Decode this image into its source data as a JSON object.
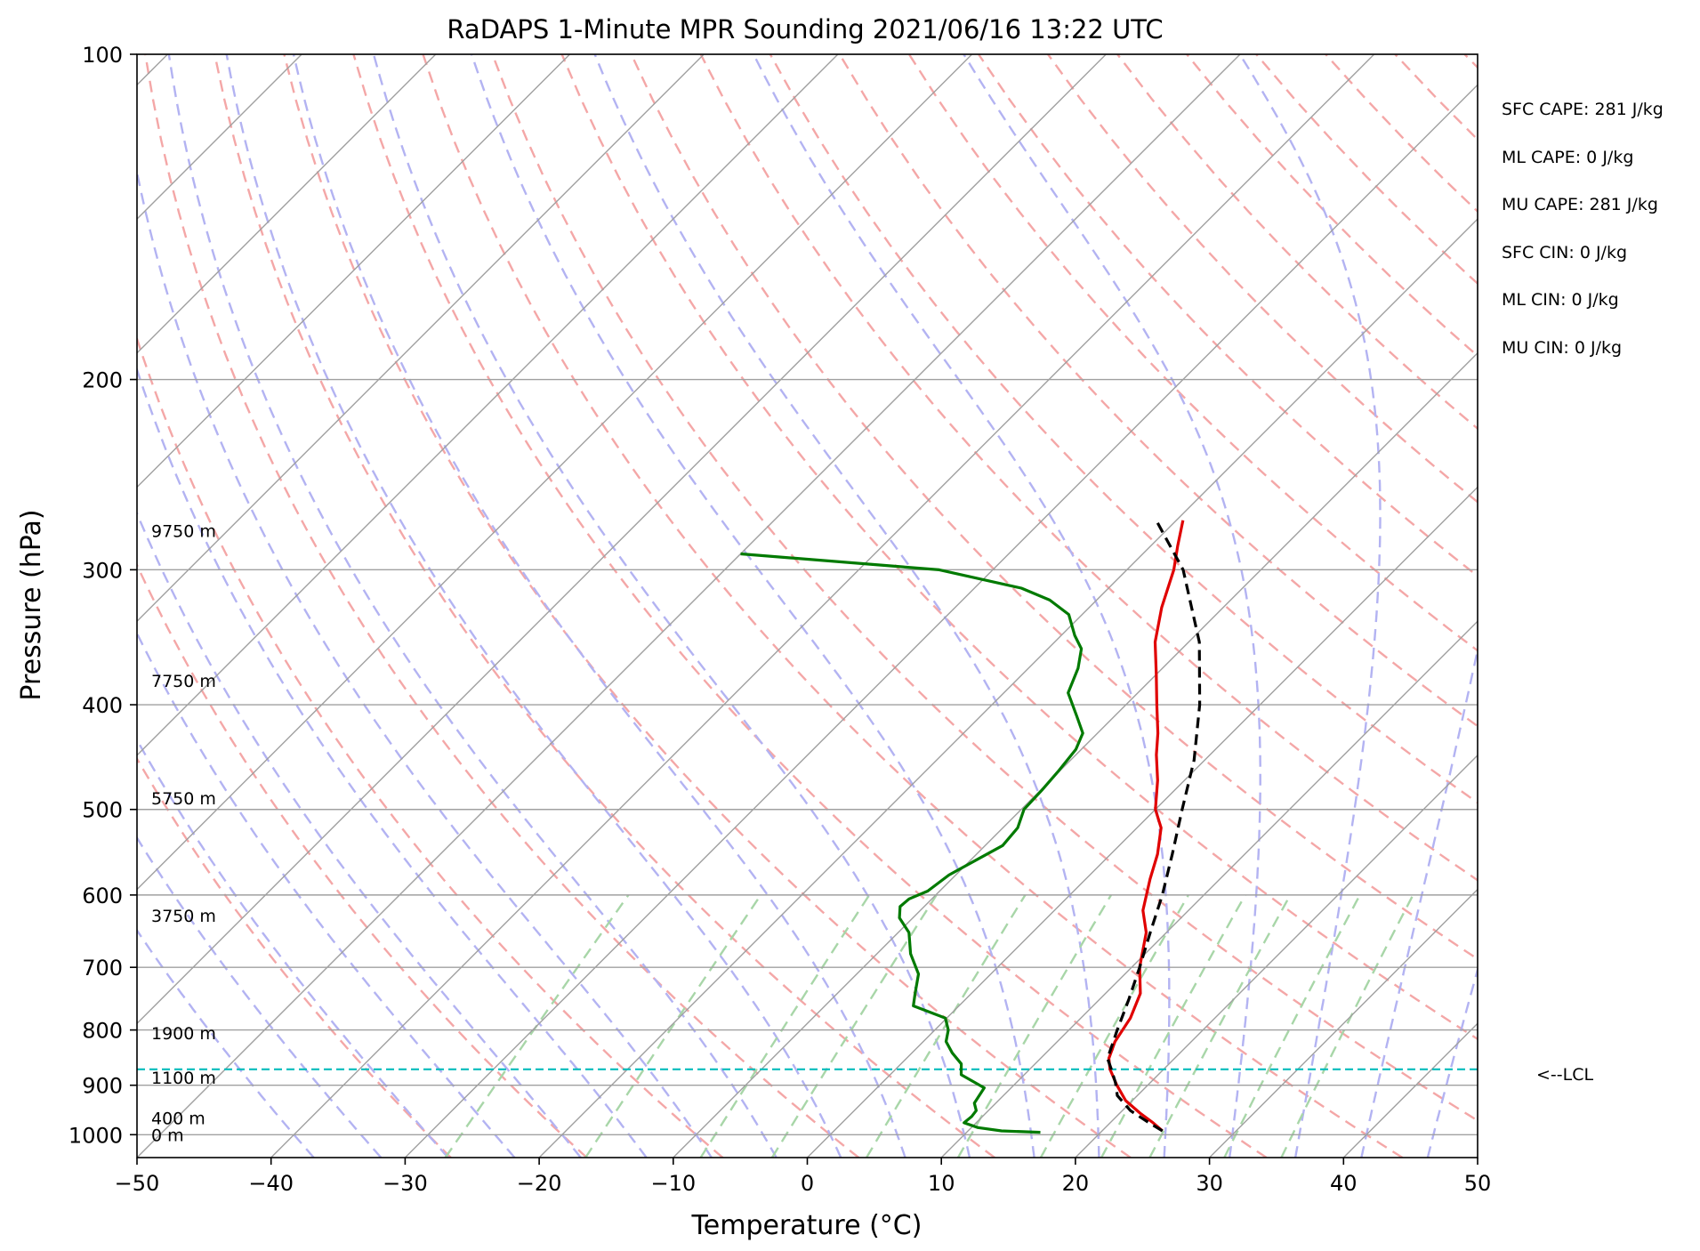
{
  "chart_data": {
    "type": "line",
    "title": "RaDAPS 1-Minute MPR Sounding 2021/06/16 13:22 UTC",
    "xlabel": "Temperature (°C)",
    "ylabel": "Pressure (hPa)",
    "xlim": [
      -50,
      50
    ],
    "ylim": [
      1050,
      100
    ],
    "yscale": "log",
    "skew": "skew-T log-p",
    "grid": true,
    "x_ticks": [
      -50,
      -40,
      -30,
      -20,
      -10,
      0,
      10,
      20,
      30,
      40,
      50
    ],
    "x_tick_labels": [
      "−50",
      "−40",
      "−30",
      "−20",
      "−10",
      "0",
      "10",
      "20",
      "30",
      "40",
      "50"
    ],
    "y_ticks": [
      1000,
      900,
      800,
      700,
      600,
      500,
      400,
      300,
      200,
      100
    ],
    "y_tick_labels": [
      "1000",
      "900",
      "800",
      "700",
      "600",
      "500",
      "400",
      "300",
      "200",
      "100"
    ],
    "colors": {
      "temperature": "#e00000",
      "dewpoint": "#007a00",
      "parcel": "#000000",
      "lcl": "#00bcbc",
      "dry_adiabats": "#f4a7a7",
      "moist_adiabats": "#b3b3f2",
      "mixing_ratio": "#a8d6a8",
      "isotherms": "#a0a0a0",
      "isobars": "#a0a0a0"
    },
    "series": [
      {
        "key": "temperature",
        "points": [
          {
            "p": 992,
            "t": 24.5
          },
          {
            "p": 975,
            "t": 23.2
          },
          {
            "p": 955,
            "t": 21.5
          },
          {
            "p": 930,
            "t": 19.5
          },
          {
            "p": 900,
            "t": 17.7
          },
          {
            "p": 870,
            "t": 16.0
          },
          {
            "p": 850,
            "t": 15.1
          },
          {
            "p": 820,
            "t": 14.3
          },
          {
            "p": 780,
            "t": 13.7
          },
          {
            "p": 740,
            "t": 12.6
          },
          {
            "p": 700,
            "t": 10.6
          },
          {
            "p": 650,
            "t": 8.5
          },
          {
            "p": 620,
            "t": 6.6
          },
          {
            "p": 580,
            "t": 4.8
          },
          {
            "p": 550,
            "t": 3.5
          },
          {
            "p": 520,
            "t": 1.8
          },
          {
            "p": 500,
            "t": 0.0
          },
          {
            "p": 470,
            "t": -2.0
          },
          {
            "p": 445,
            "t": -4.0
          },
          {
            "p": 425,
            "t": -5.5
          },
          {
            "p": 400,
            "t": -7.7
          },
          {
            "p": 375,
            "t": -10.0
          },
          {
            "p": 350,
            "t": -12.5
          },
          {
            "p": 325,
            "t": -14.6
          },
          {
            "p": 300,
            "t": -16.5
          },
          {
            "p": 285,
            "t": -18.0
          },
          {
            "p": 270,
            "t": -19.5
          }
        ]
      },
      {
        "key": "dewpoint",
        "points": [
          {
            "p": 995,
            "t": 15.5
          },
          {
            "p": 992,
            "t": 12.5
          },
          {
            "p": 985,
            "t": 10.5
          },
          {
            "p": 975,
            "t": 9.1
          },
          {
            "p": 962,
            "t": 9.2
          },
          {
            "p": 950,
            "t": 9.1
          },
          {
            "p": 935,
            "t": 8.4
          },
          {
            "p": 905,
            "t": 8.0
          },
          {
            "p": 880,
            "t": 5.3
          },
          {
            "p": 860,
            "t": 4.5
          },
          {
            "p": 840,
            "t": 3.0
          },
          {
            "p": 820,
            "t": 1.7
          },
          {
            "p": 800,
            "t": 1.0
          },
          {
            "p": 780,
            "t": -0.1
          },
          {
            "p": 760,
            "t": -3.4
          },
          {
            "p": 740,
            "t": -4.2
          },
          {
            "p": 710,
            "t": -5.4
          },
          {
            "p": 680,
            "t": -7.5
          },
          {
            "p": 650,
            "t": -9.2
          },
          {
            "p": 630,
            "t": -11.0
          },
          {
            "p": 615,
            "t": -11.8
          },
          {
            "p": 605,
            "t": -11.7
          },
          {
            "p": 595,
            "t": -10.9
          },
          {
            "p": 575,
            "t": -10.5
          },
          {
            "p": 555,
            "t": -9.5
          },
          {
            "p": 540,
            "t": -8.7
          },
          {
            "p": 520,
            "t": -8.9
          },
          {
            "p": 500,
            "t": -9.8
          },
          {
            "p": 480,
            "t": -9.9
          },
          {
            "p": 460,
            "t": -10.1
          },
          {
            "p": 440,
            "t": -10.4
          },
          {
            "p": 425,
            "t": -11.1
          },
          {
            "p": 410,
            "t": -12.8
          },
          {
            "p": 390,
            "t": -15.2
          },
          {
            "p": 370,
            "t": -16.3
          },
          {
            "p": 355,
            "t": -17.5
          },
          {
            "p": 345,
            "t": -19.0
          },
          {
            "p": 330,
            "t": -21.0
          },
          {
            "p": 320,
            "t": -23.5
          },
          {
            "p": 312,
            "t": -26.5
          },
          {
            "p": 300,
            "t": -34.0
          },
          {
            "p": 290,
            "t": -50.0
          }
        ]
      },
      {
        "key": "parcel",
        "points": [
          {
            "p": 992,
            "t": 24.5
          },
          {
            "p": 975,
            "t": 22.9
          },
          {
            "p": 950,
            "t": 20.6
          },
          {
            "p": 920,
            "t": 18.5
          },
          {
            "p": 895,
            "t": 17.4
          },
          {
            "p": 870,
            "t": 16.1
          },
          {
            "p": 850,
            "t": 15.0
          },
          {
            "p": 800,
            "t": 13.6
          },
          {
            "p": 750,
            "t": 12.2
          },
          {
            "p": 700,
            "t": 10.6
          },
          {
            "p": 650,
            "t": 8.8
          },
          {
            "p": 600,
            "t": 6.9
          },
          {
            "p": 550,
            "t": 4.6
          },
          {
            "p": 500,
            "t": 2.0
          },
          {
            "p": 450,
            "t": -0.8
          },
          {
            "p": 400,
            "t": -4.5
          },
          {
            "p": 350,
            "t": -9.2
          },
          {
            "p": 300,
            "t": -15.8
          },
          {
            "p": 270,
            "t": -21.5
          }
        ]
      }
    ],
    "lcl": {
      "p": 870,
      "label": "<--LCL"
    },
    "height_labels": [
      {
        "p": 1000,
        "text": "0 m"
      },
      {
        "p": 965,
        "text": "400 m"
      },
      {
        "p": 885,
        "text": "1100 m"
      },
      {
        "p": 805,
        "text": "1900 m"
      },
      {
        "p": 627,
        "text": "3750 m"
      },
      {
        "p": 488,
        "text": "5750 m"
      },
      {
        "p": 380,
        "text": "7750 m"
      },
      {
        "p": 276,
        "text": "9750 m"
      }
    ],
    "indices": [
      "SFC CAPE: 281 J/kg",
      "ML CAPE: 0 J/kg",
      "MU CAPE: 281 J/kg",
      "SFC CIN: 0 J/kg",
      "ML CIN: 0 J/kg",
      "MU CIN: 0 J/kg"
    ]
  }
}
